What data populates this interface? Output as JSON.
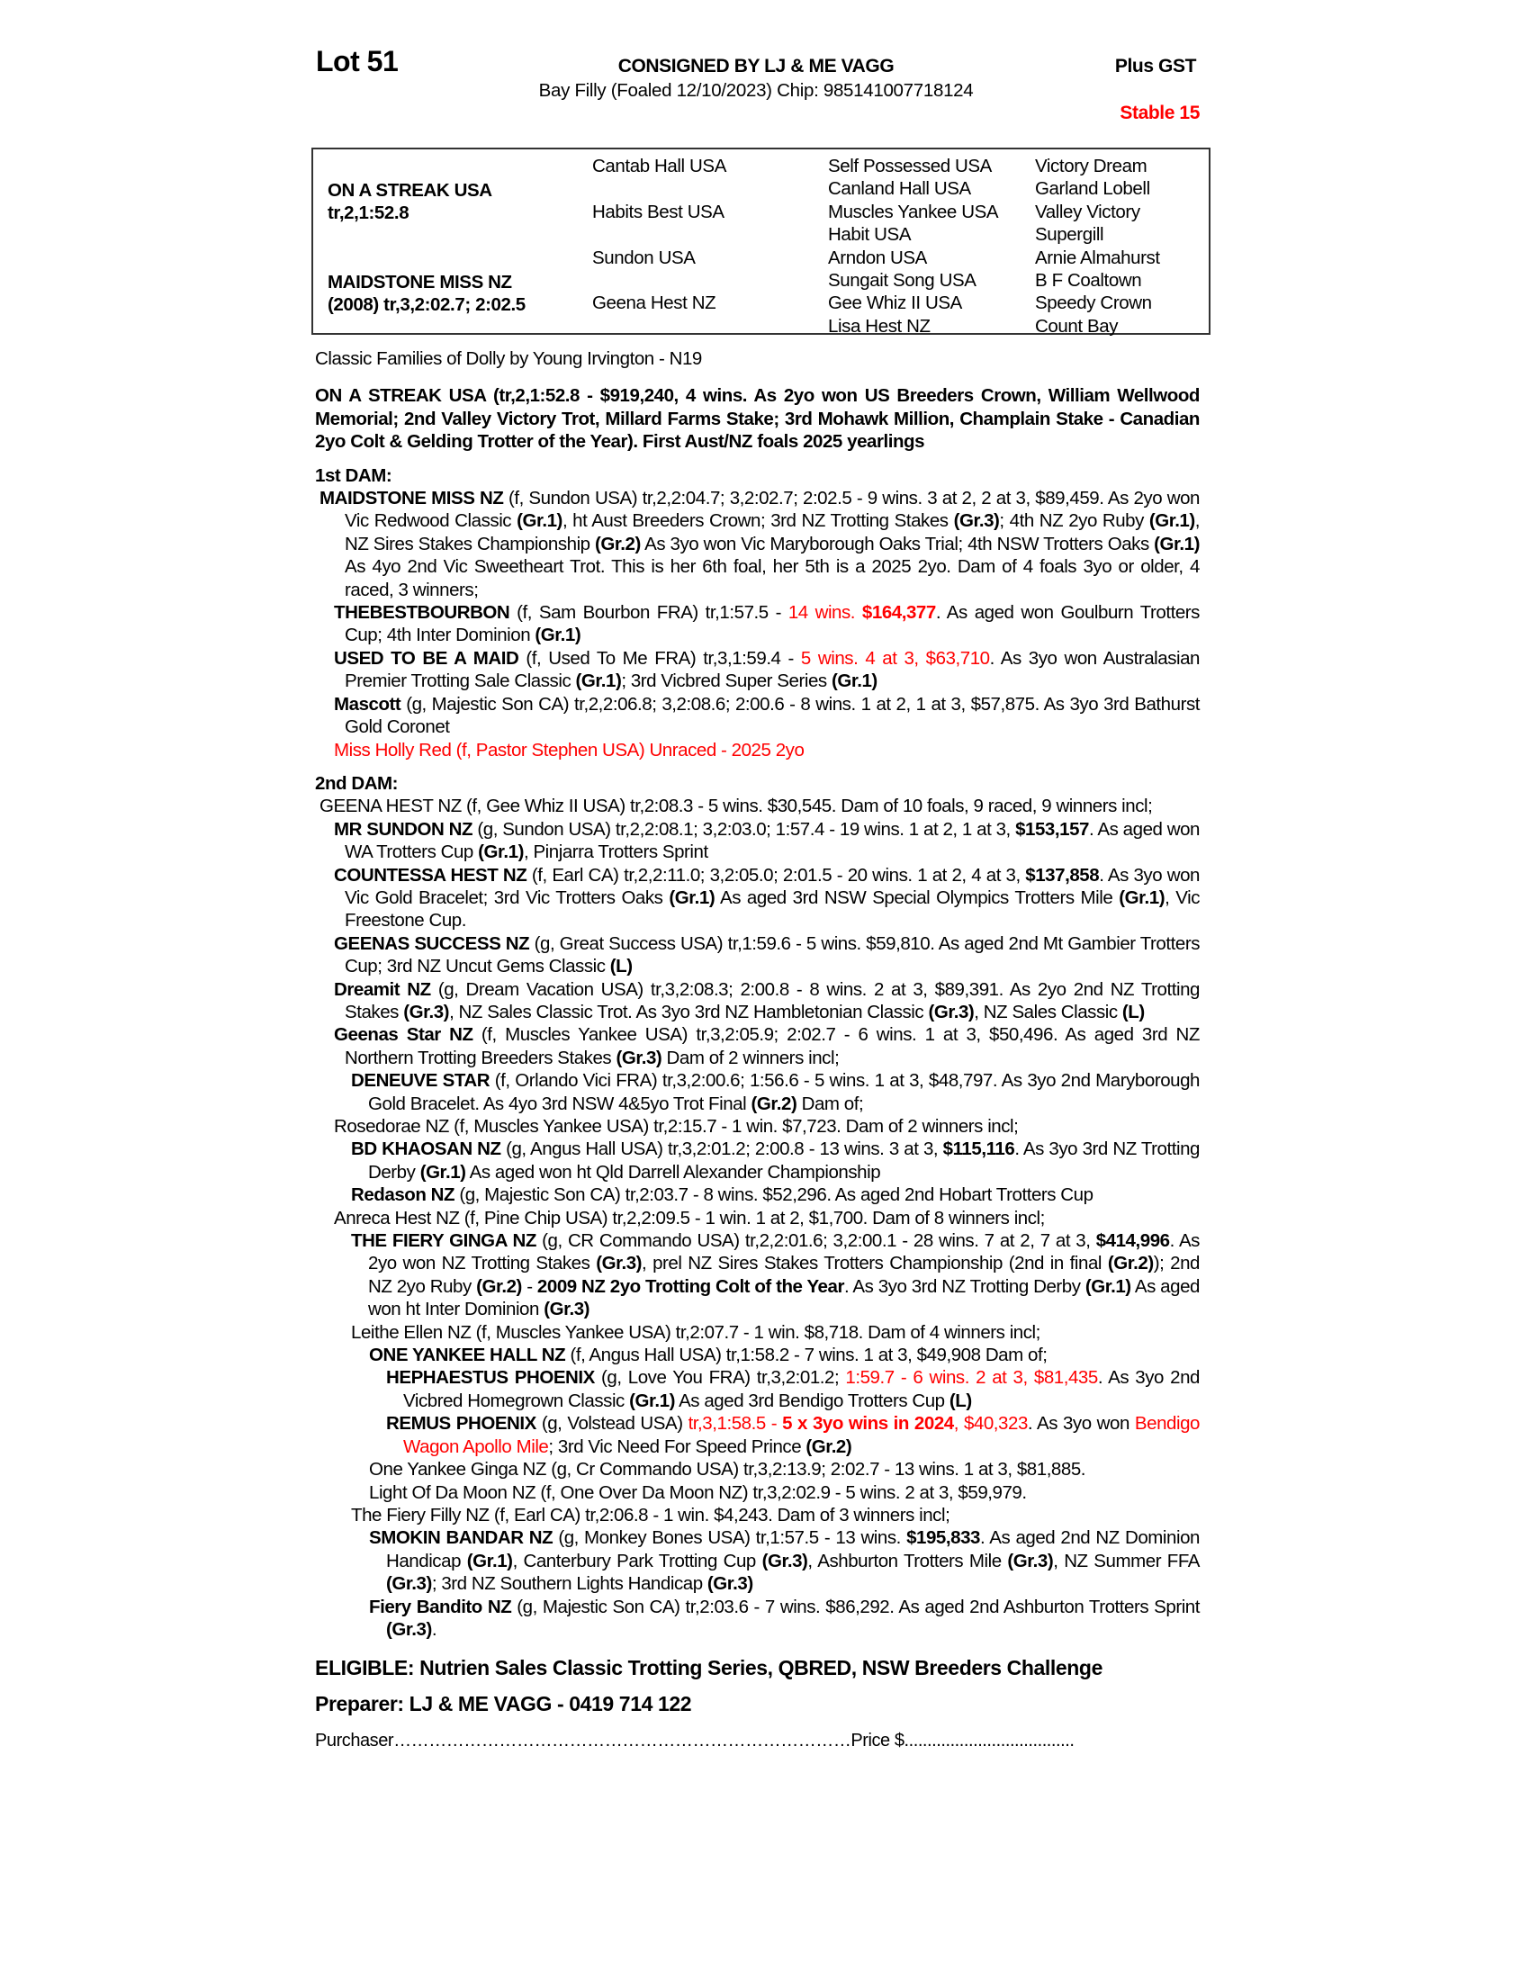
{
  "header": {
    "lot": "Lot 51",
    "consigned": "CONSIGNED BY LJ & ME VAGG",
    "description": "Bay Filly (Foaled 12/10/2023) Chip: 985141007718124",
    "gst": "Plus GST",
    "stable": "Stable 15",
    "accent_color": "#ff0000"
  },
  "pedigree": {
    "sire_name": "ON A STREAK USA",
    "sire_record": "tr,2,1:52.8",
    "dam_name": "MAIDSTONE MISS NZ",
    "dam_record": "(2008) tr,3,2:02.7; 2:02.5",
    "col2": [
      "Cantab Hall USA",
      "Habits Best USA",
      "Sundon USA",
      "Geena Hest NZ"
    ],
    "col3": [
      "Self Possessed USA",
      "Canland Hall USA",
      "Muscles Yankee USA",
      "Habit USA",
      "Arndon USA",
      "Sungait Song USA",
      "Gee Whiz II USA",
      "Lisa Hest NZ"
    ],
    "col4": [
      "Victory Dream",
      "Garland Lobell",
      "Valley Victory",
      "Supergill",
      "Arnie Almahurst",
      "B F Coaltown",
      "Speedy Crown",
      "Count Bay"
    ]
  },
  "family": "Classic Families of Dolly by Young Irvington - N19",
  "sire_paragraph": "ON A STREAK USA (tr,2,1:52.8 - $919,240, 4 wins. As 2yo won US Breeders Crown, William Wellwood Memorial; 2nd Valley Victory Trot, Millard Farms Stake; 3rd Mohawk Million, Champlain Stake - Canadian 2yo Colt & Gelding Trotter of the Year). First Aust/NZ foals 2025 yearlings",
  "dams": [
    {
      "heading": "1st DAM:",
      "entries": [
        {
          "level": 0,
          "segs": [
            [
              "MAIDSTONE MISS NZ",
              "b"
            ],
            [
              " (f, Sundon USA) tr,2,2:04.7; 3,2:02.7; 2:02.5 - 9 wins. 3 at 2, 2 at 3, $89,459. As 2yo won Vic Redwood Classic ",
              ""
            ],
            [
              "(Gr.1)",
              "b"
            ],
            [
              ", ht Aust Breeders Crown; 3rd NZ Trotting Stakes ",
              ""
            ],
            [
              "(Gr.3)",
              "b"
            ],
            [
              "; 4th NZ 2yo Ruby ",
              ""
            ],
            [
              "(Gr.1)",
              "b"
            ],
            [
              ", NZ Sires Stakes Championship ",
              ""
            ],
            [
              "(Gr.2)",
              "b"
            ],
            [
              " As 3yo won Vic Maryborough Oaks Trial; 4th NSW Trotters Oaks ",
              ""
            ],
            [
              "(Gr.1)",
              "b"
            ],
            [
              " As 4yo 2nd Vic Sweetheart Trot. This is her 6th foal, her 5th is a 2025 2yo. Dam of 4 foals 3yo or older, 4 raced, 3 winners;",
              ""
            ]
          ]
        },
        {
          "level": 1,
          "segs": [
            [
              "THEBESTBOURBON",
              "b"
            ],
            [
              " (f, Sam Bourbon FRA) tr,1:57.5 - ",
              ""
            ],
            [
              "14 wins. ",
              "r"
            ],
            [
              "$164,377",
              "br"
            ],
            [
              ". As aged won Goulburn Trotters Cup; 4th Inter Dominion ",
              ""
            ],
            [
              "(Gr.1)",
              "b"
            ]
          ]
        },
        {
          "level": 1,
          "segs": [
            [
              "USED TO BE A MAID",
              "b"
            ],
            [
              " (f, Used To Me FRA) tr,3,1:59.4 - ",
              ""
            ],
            [
              "5 wins. 4 at 3, $63,710",
              "r"
            ],
            [
              ". As 3yo won Australasian Premier Trotting Sale Classic ",
              ""
            ],
            [
              "(Gr.1)",
              "b"
            ],
            [
              "; 3rd Vicbred Super Series ",
              ""
            ],
            [
              "(Gr.1)",
              "b"
            ]
          ]
        },
        {
          "level": 1,
          "segs": [
            [
              "Mascott",
              "b"
            ],
            [
              " (g, Majestic Son CA) tr,2,2:06.8; 3,2:08.6; 2:00.6 - 8 wins. 1 at 2, 1 at 3, $57,875. As 3yo 3rd Bathurst Gold Coronet",
              ""
            ]
          ]
        },
        {
          "level": 1,
          "segs": [
            [
              "Miss Holly Red (f, Pastor Stephen USA) Unraced - 2025 2yo",
              "r"
            ]
          ]
        }
      ]
    },
    {
      "heading": "2nd DAM:",
      "entries": [
        {
          "level": 0,
          "segs": [
            [
              "GEENA HEST NZ (f, Gee Whiz II USA) tr,2:08.3 - 5 wins. $30,545. Dam of 10 foals, 9 raced, 9 winners incl;",
              ""
            ]
          ]
        },
        {
          "level": 1,
          "segs": [
            [
              "MR SUNDON NZ",
              "b"
            ],
            [
              " (g, Sundon USA) tr,2,2:08.1; 3,2:03.0; 1:57.4 - 19 wins. 1 at 2, 1 at 3, ",
              ""
            ],
            [
              "$153,157",
              "b"
            ],
            [
              ". As aged won WA Trotters Cup ",
              ""
            ],
            [
              "(Gr.1)",
              "b"
            ],
            [
              ", Pinjarra Trotters Sprint",
              ""
            ]
          ]
        },
        {
          "level": 1,
          "segs": [
            [
              "COUNTESSA HEST NZ",
              "b"
            ],
            [
              " (f, Earl CA) tr,2,2:11.0; 3,2:05.0; 2:01.5 - 20 wins. 1 at 2, 4 at 3, ",
              ""
            ],
            [
              "$137,858",
              "b"
            ],
            [
              ". As 3yo won Vic Gold Bracelet; 3rd Vic Trotters Oaks ",
              ""
            ],
            [
              "(Gr.1)",
              "b"
            ],
            [
              " As aged 3rd NSW Special Olympics Trotters Mile ",
              ""
            ],
            [
              "(Gr.1)",
              "b"
            ],
            [
              ", Vic Freestone Cup.",
              ""
            ]
          ]
        },
        {
          "level": 1,
          "segs": [
            [
              "GEENAS SUCCESS NZ",
              "b"
            ],
            [
              " (g, Great Success USA) tr,1:59.6 - 5 wins. $59,810. As aged 2nd Mt Gambier Trotters Cup; 3rd NZ Uncut Gems Classic ",
              ""
            ],
            [
              "(L)",
              "b"
            ]
          ]
        },
        {
          "level": 1,
          "segs": [
            [
              "Dreamit NZ",
              "b"
            ],
            [
              " (g, Dream Vacation USA) tr,3,2:08.3; 2:00.8 - 8 wins. 2 at 3, $89,391. As 2yo 2nd NZ Trotting Stakes ",
              ""
            ],
            [
              "(Gr.3)",
              "b"
            ],
            [
              ", NZ Sales Classic Trot. As 3yo 3rd NZ Hambletonian Classic ",
              ""
            ],
            [
              "(Gr.3)",
              "b"
            ],
            [
              ", NZ Sales Classic ",
              ""
            ],
            [
              "(L)",
              "b"
            ]
          ]
        },
        {
          "level": 1,
          "segs": [
            [
              "Geenas Star NZ",
              "b"
            ],
            [
              " (f, Muscles Yankee USA) tr,3,2:05.9; 2:02.7 - 6 wins. 1 at 3, $50,496. As aged 3rd NZ Northern Trotting Breeders Stakes ",
              ""
            ],
            [
              "(Gr.3)",
              "b"
            ],
            [
              " Dam of 2 winners incl;",
              ""
            ]
          ]
        },
        {
          "level": 2,
          "segs": [
            [
              "DENEUVE STAR",
              "b"
            ],
            [
              " (f, Orlando Vici FRA) tr,3,2:00.6; 1:56.6 - 5 wins. 1 at 3, $48,797. As 3yo 2nd Maryborough Gold Bracelet. As 4yo 3rd NSW 4&5yo Trot Final ",
              ""
            ],
            [
              "(Gr.2)",
              "b"
            ],
            [
              " Dam of;",
              ""
            ]
          ]
        },
        {
          "level": 1,
          "segs": [
            [
              "Rosedorae NZ (f, Muscles Yankee USA) tr,2:15.7 - 1 win. $7,723. Dam of 2 winners incl;",
              ""
            ]
          ]
        },
        {
          "level": 2,
          "segs": [
            [
              "BD KHAOSAN NZ",
              "b"
            ],
            [
              " (g, Angus Hall USA) tr,3,2:01.2; 2:00.8 - 13 wins. 3 at 3, ",
              ""
            ],
            [
              "$115,116",
              "b"
            ],
            [
              ". As 3yo 3rd NZ Trotting Derby ",
              ""
            ],
            [
              "(Gr.1)",
              "b"
            ],
            [
              " As aged won ht Qld Darrell Alexander Championship",
              ""
            ]
          ]
        },
        {
          "level": 2,
          "segs": [
            [
              "Redason NZ",
              "b"
            ],
            [
              " (g, Majestic Son CA) tr,2:03.7 - 8 wins. $52,296. As aged 2nd Hobart Trotters Cup",
              ""
            ]
          ]
        },
        {
          "level": 1,
          "segs": [
            [
              "Anreca Hest NZ (f, Pine Chip USA) tr,2,2:09.5 - 1 win. 1 at 2, $1,700. Dam of 8 winners incl;",
              ""
            ]
          ]
        },
        {
          "level": 2,
          "segs": [
            [
              "THE FIERY GINGA NZ",
              "b"
            ],
            [
              " (g, CR Commando USA) tr,2,2:01.6; 3,2:00.1 - 28 wins. 7 at 2, 7 at 3, ",
              ""
            ],
            [
              "$414,996",
              "b"
            ],
            [
              ". As 2yo won NZ Trotting Stakes ",
              ""
            ],
            [
              "(Gr.3)",
              "b"
            ],
            [
              ", prel NZ Sires Stakes Trotters Championship (2nd in final ",
              ""
            ],
            [
              "(Gr.2)",
              "b"
            ],
            [
              "); 2nd NZ 2yo Ruby ",
              ""
            ],
            [
              "(Gr.2)",
              "b"
            ],
            [
              " - ",
              ""
            ],
            [
              "2009 NZ 2yo Trotting Colt of the Year",
              "b"
            ],
            [
              ". As 3yo 3rd NZ Trotting Derby ",
              ""
            ],
            [
              "(Gr.1)",
              "b"
            ],
            [
              " As aged won ht Inter Dominion ",
              ""
            ],
            [
              "(Gr.3)",
              "b"
            ]
          ]
        },
        {
          "level": 2,
          "segs": [
            [
              "Leithe Ellen NZ (f, Muscles Yankee USA) tr,2:07.7 - 1 win. $8,718. Dam of 4 winners incl;",
              ""
            ]
          ]
        },
        {
          "level": 3,
          "segs": [
            [
              "ONE YANKEE HALL NZ",
              "b"
            ],
            [
              " (f, Angus Hall USA) tr,1:58.2 - 7 wins. 1 at 3, $49,908 Dam of;",
              ""
            ]
          ]
        },
        {
          "level": 4,
          "segs": [
            [
              "HEPHAESTUS PHOENIX",
              "b"
            ],
            [
              " (g, Love You FRA) tr,3,2:01.2; ",
              ""
            ],
            [
              "1:59.7 - 6 wins. 2 at 3, $81,435",
              "r"
            ],
            [
              ". As 3yo 2nd Vicbred Homegrown Classic ",
              ""
            ],
            [
              "(Gr.1)",
              "b"
            ],
            [
              " As aged 3rd Bendigo Trotters Cup ",
              ""
            ],
            [
              "(L)",
              "b"
            ]
          ]
        },
        {
          "level": 4,
          "segs": [
            [
              "REMUS PHOENIX",
              "b"
            ],
            [
              " (g, Volstead USA) ",
              ""
            ],
            [
              "tr,3,1:58.5 - ",
              "r"
            ],
            [
              "5 x 3yo wins in 2024",
              "br"
            ],
            [
              ", $40,323",
              "r"
            ],
            [
              ". As 3yo won ",
              ""
            ],
            [
              "Bendigo Wagon Apollo Mile",
              "r"
            ],
            [
              "; 3rd Vic Need For Speed Prince ",
              ""
            ],
            [
              "(Gr.2)",
              "b"
            ]
          ]
        },
        {
          "level": 3,
          "segs": [
            [
              "One Yankee Ginga NZ (g, Cr Commando USA) tr,3,2:13.9; 2:02.7 - 13 wins. 1 at 3, $81,885.",
              ""
            ]
          ]
        },
        {
          "level": 3,
          "segs": [
            [
              "Light Of Da Moon NZ (f, One Over Da Moon NZ) tr,3,2:02.9 - 5 wins. 2 at 3, $59,979.",
              ""
            ]
          ]
        },
        {
          "level": 2,
          "segs": [
            [
              "The Fiery Filly NZ (f, Earl CA) tr,2:06.8 - 1 win. $4,243. Dam of 3 winners incl;",
              ""
            ]
          ]
        },
        {
          "level": 3,
          "segs": [
            [
              "SMOKIN BANDAR NZ",
              "b"
            ],
            [
              " (g, Monkey Bones USA) tr,1:57.5 - 13 wins. ",
              ""
            ],
            [
              "$195,833",
              "b"
            ],
            [
              ". As aged 2nd NZ Dominion Handicap ",
              ""
            ],
            [
              "(Gr.1)",
              "b"
            ],
            [
              ", Canterbury Park Trotting Cup ",
              ""
            ],
            [
              "(Gr.3)",
              "b"
            ],
            [
              ", Ashburton Trotters Mile ",
              ""
            ],
            [
              "(Gr.3)",
              "b"
            ],
            [
              ", NZ Summer FFA ",
              ""
            ],
            [
              "(Gr.3)",
              "b"
            ],
            [
              "; 3rd NZ Southern Lights Handicap ",
              ""
            ],
            [
              "(Gr.3)",
              "b"
            ]
          ]
        },
        {
          "level": 3,
          "segs": [
            [
              "Fiery Bandito NZ",
              "b"
            ],
            [
              " (g, Majestic Son CA) tr,2:03.6 - 7 wins. $86,292. As aged 2nd Ashburton Trotters Sprint ",
              ""
            ],
            [
              "(Gr.3)",
              "b"
            ],
            [
              ".",
              ""
            ]
          ]
        }
      ]
    }
  ],
  "footer": {
    "eligible": "ELIGIBLE: Nutrien Sales Classic Trotting Series, QBRED, NSW Breeders Challenge",
    "preparer": "Preparer: LJ & ME VAGG - 0419 714 122",
    "purchaser": "Purchaser……………………………………………………………………Price $....................................."
  }
}
